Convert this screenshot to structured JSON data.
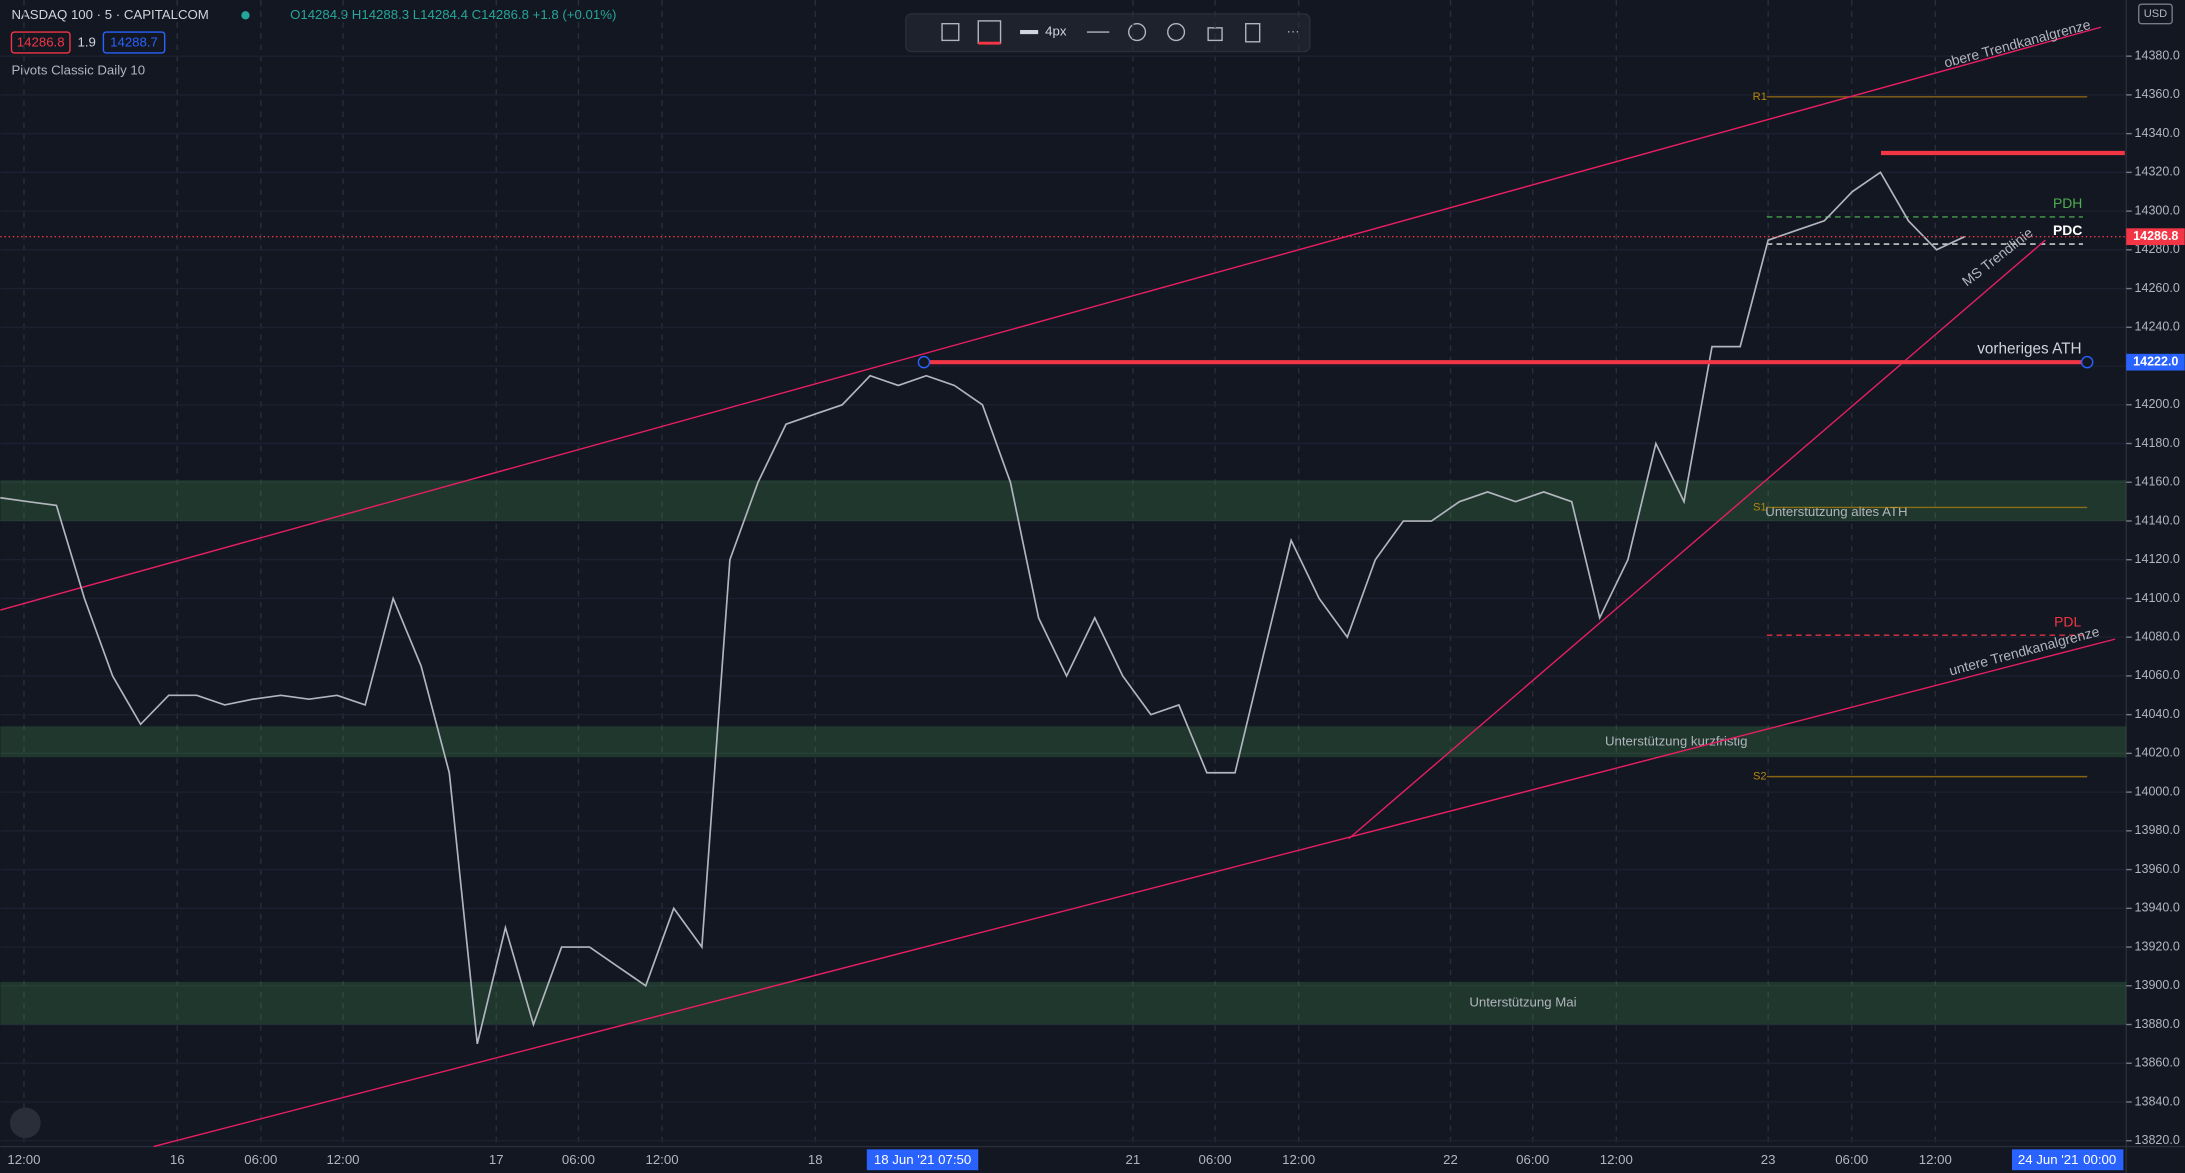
{
  "chart_data": {
    "type": "line",
    "header": {
      "symbol": "NASDAQ 100 · 5 · CAPITALCOM",
      "ohlc": "O14284.9 H14288.3 L14284.4 C14286.8 +1.8 (+0.01%)",
      "bid": "14286.8",
      "spread": "1.9",
      "ask": "14288.7",
      "indicator": "Pivots Classic Daily 10"
    },
    "toolbar": {
      "width": "4px"
    },
    "currency": "USD",
    "series": [
      {
        "name": "NASDAQ 100",
        "color": "#b2b5be",
        "values": [
          14152,
          14150,
          14148,
          14100,
          14060,
          14035,
          14050,
          14050,
          14045,
          14048,
          14050,
          14048,
          14050,
          14045,
          14100,
          14065,
          14010,
          13870,
          13930,
          13880,
          13920,
          13920,
          13910,
          13900,
          13940,
          13920,
          14120,
          14160,
          14190,
          14195,
          14200,
          14215,
          14210,
          14215,
          14210,
          14200,
          14160,
          14090,
          14060,
          14090,
          14060,
          14040,
          14045,
          14010,
          14010,
          14070,
          14130,
          14100,
          14080,
          14120,
          14140,
          14140,
          14150,
          14155,
          14150,
          14155,
          14150,
          14090,
          14120,
          14180,
          14150,
          14230,
          14230,
          14285,
          14290,
          14295,
          14310,
          14320,
          14295,
          14280,
          14286.8
        ]
      }
    ],
    "x_labels": [
      "12:00",
      "16",
      "06:00",
      "12:00",
      "17",
      "06:00",
      "12:00",
      "18",
      "18 Jun '21  07:50",
      "21",
      "06:00",
      "12:00",
      "22",
      "06:00",
      "12:00",
      "23",
      "06:00",
      "12:00",
      "24 Jun '21",
      "00:00"
    ],
    "ylim": [
      13817,
      14409
    ],
    "yticks": [
      {
        "value": 13820,
        "label": "13820.0"
      },
      {
        "value": 13840,
        "label": "13840.0"
      },
      {
        "value": 13860,
        "label": "13860.0"
      },
      {
        "value": 13880,
        "label": "13880.0"
      },
      {
        "value": 13900,
        "label": "13900.0"
      },
      {
        "value": 13920,
        "label": "13920.0"
      },
      {
        "value": 13940,
        "label": "13940.0"
      },
      {
        "value": 13960,
        "label": "13960.0"
      },
      {
        "value": 13980,
        "label": "13980.0"
      },
      {
        "value": 14000,
        "label": "14000.0"
      },
      {
        "value": 14020,
        "label": "14020.0"
      },
      {
        "value": 14040,
        "label": "14040.0"
      },
      {
        "value": 14060,
        "label": "14060.0"
      },
      {
        "value": 14080,
        "label": "14080.0"
      },
      {
        "value": 14100,
        "label": "14100.0"
      },
      {
        "value": 14120,
        "label": "14120.0"
      },
      {
        "value": 14140,
        "label": "14140.0"
      },
      {
        "value": 14160,
        "label": "14160.0"
      },
      {
        "value": 14180,
        "label": "14180.0"
      },
      {
        "value": 14200,
        "label": "14200.0"
      },
      {
        "value": 14220,
        "label": "14220.0"
      },
      {
        "value": 14240,
        "label": "14240.0"
      },
      {
        "value": 14260,
        "label": "14260.0"
      },
      {
        "value": 14280,
        "label": "14280.0"
      },
      {
        "value": 14300,
        "label": "14300.0"
      },
      {
        "value": 14320,
        "label": "14320.0"
      },
      {
        "value": 14340,
        "label": "14340.0"
      },
      {
        "value": 14360,
        "label": "14360.0"
      },
      {
        "value": 14380,
        "label": "14380.0"
      }
    ],
    "zones": [
      {
        "label": "Unterstützung altes ATH",
        "range": [
          14140,
          14161
        ]
      },
      {
        "label": "Unterstützung kurzfristig",
        "range": [
          14018,
          14034
        ]
      },
      {
        "label": "Unterstützung Mai",
        "range": [
          13880,
          13902
        ]
      }
    ],
    "pivots": [
      {
        "label": "R1",
        "value": 14359,
        "color": "#b8860b"
      },
      {
        "label": "S1",
        "value": 14147,
        "color": "#b8860b"
      },
      {
        "label": "S2",
        "value": 14008,
        "color": "#b8860b"
      },
      {
        "label": "PDH",
        "value": 14297,
        "color": "#4caf50"
      },
      {
        "label": "PDC",
        "value": 14283,
        "color": "#ffffff"
      },
      {
        "label": "PDL",
        "value": 14081,
        "color": "#f23645"
      }
    ],
    "levels": [
      {
        "label": "vorheriges ATH",
        "value": 14222,
        "color": "#f23645"
      },
      {
        "value": 14330,
        "color": "#f23645"
      }
    ],
    "trendlines": [
      {
        "label": "obere Trendkanalgrenze",
        "y": [
          14094,
          14395
        ]
      },
      {
        "label": "untere Trendkanalgrenze",
        "y": [
          13817,
          14079
        ]
      },
      {
        "label": "MS Trendlinie",
        "y": [
          13976,
          14285
        ]
      }
    ],
    "price_tags": [
      {
        "label": "14286.8",
        "value": 14286.8,
        "color": "#f23645"
      },
      {
        "label": "14222.0",
        "value": 14222,
        "color": "#2962ff"
      }
    ]
  }
}
